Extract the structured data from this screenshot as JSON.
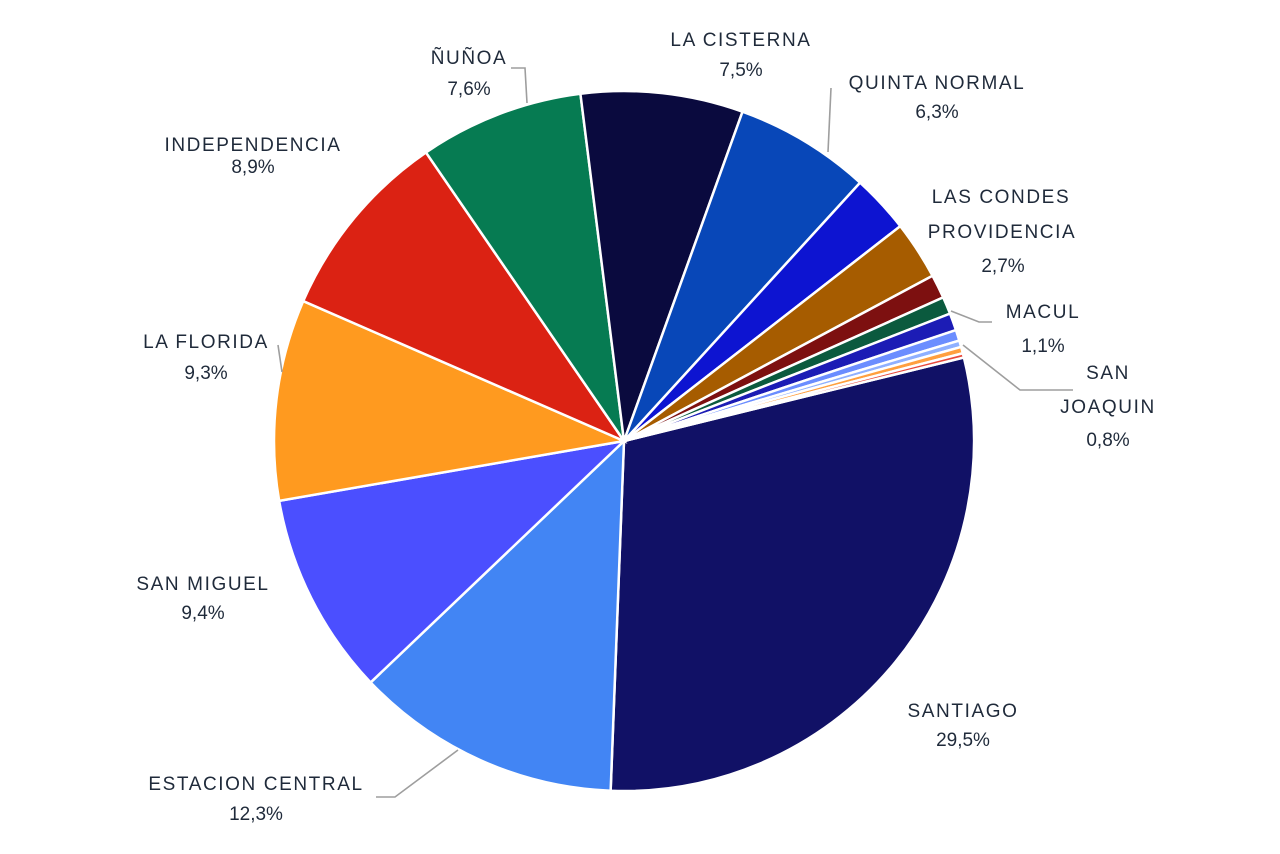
{
  "chart_data": {
    "type": "pie",
    "title": "",
    "slices": [
      {
        "name": "SANTIAGO",
        "value": 29.5,
        "label": "29,5%",
        "color": "#111166"
      },
      {
        "name": "ESTACION CENTRAL",
        "value": 12.3,
        "label": "12,3%",
        "color": "#4285f4"
      },
      {
        "name": "SAN MIGUEL",
        "value": 9.4,
        "label": "9,4%",
        "color": "#4b4fff"
      },
      {
        "name": "LA FLORIDA",
        "value": 9.3,
        "label": "9,3%",
        "color": "#ff9a1f"
      },
      {
        "name": "INDEPENDENCIA",
        "value": 8.9,
        "label": "8,9%",
        "color": "#db2213"
      },
      {
        "name": "ÑUÑOA",
        "value": 7.6,
        "label": "7,6%",
        "color": "#067b52"
      },
      {
        "name": "LA CISTERNA",
        "value": 7.5,
        "label": "7,5%",
        "color": "#0a0a3e"
      },
      {
        "name": "QUINTA NORMAL",
        "value": 6.3,
        "label": "6,3%",
        "color": "#0847b8"
      },
      {
        "name": "LAS CONDES",
        "value": 2.7,
        "label": "",
        "color": "#0d14d1"
      },
      {
        "name": "PROVIDENCIA",
        "value": 2.7,
        "label": "2,7%",
        "color": "#a65c00"
      },
      {
        "name": "MACUL",
        "value": 1.1,
        "label": "1,1%",
        "color": "#7d1010"
      },
      {
        "name": "",
        "value": 0.8,
        "label": "",
        "color": "#0b5a3e"
      },
      {
        "name": "SAN JOAQUIN",
        "value": 0.8,
        "label": "0,8%",
        "color": "#1c1cb5"
      },
      {
        "name": "",
        "value": 0.5,
        "label": "",
        "color": "#6b8dff"
      },
      {
        "name": "",
        "value": 0.3,
        "label": "",
        "color": "#8fb0ff"
      },
      {
        "name": "",
        "value": 0.3,
        "label": "",
        "color": "#ff9f3f"
      },
      {
        "name": "",
        "value": 0.2,
        "label": "",
        "color": "#e8483c"
      }
    ]
  }
}
